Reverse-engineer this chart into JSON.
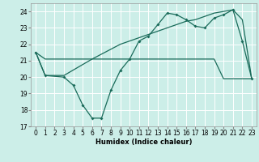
{
  "title": "",
  "xlabel": "Humidex (Indice chaleur)",
  "bg_color": "#cceee8",
  "grid_color": "#ffffff",
  "line_color": "#1a6b5a",
  "xlim": [
    -0.5,
    23.5
  ],
  "ylim": [
    17,
    24.5
  ],
  "yticks": [
    17,
    18,
    19,
    20,
    21,
    22,
    23,
    24
  ],
  "xticks": [
    0,
    1,
    2,
    3,
    4,
    5,
    6,
    7,
    8,
    9,
    10,
    11,
    12,
    13,
    14,
    15,
    16,
    17,
    18,
    19,
    20,
    21,
    22,
    23
  ],
  "line1_x": [
    0,
    1,
    2,
    3,
    4,
    5,
    6,
    7,
    8,
    9,
    10,
    11,
    12,
    13,
    14,
    15,
    16,
    17,
    18,
    19,
    20,
    21,
    22,
    23
  ],
  "line1_y": [
    21.5,
    21.1,
    21.1,
    21.1,
    21.1,
    21.1,
    21.1,
    21.1,
    21.1,
    21.1,
    21.1,
    21.1,
    21.1,
    21.1,
    21.1,
    21.1,
    21.1,
    21.1,
    21.1,
    21.1,
    19.9,
    19.9,
    19.9,
    19.9
  ],
  "line2_x": [
    0,
    1,
    3,
    4,
    5,
    6,
    7,
    8,
    9,
    10,
    11,
    12,
    13,
    14,
    15,
    16,
    17,
    18,
    19,
    20,
    21,
    22,
    23
  ],
  "line2_y": [
    21.5,
    20.1,
    20.0,
    19.5,
    18.3,
    17.5,
    17.5,
    19.2,
    20.4,
    21.1,
    22.2,
    22.5,
    23.2,
    23.9,
    23.8,
    23.5,
    23.1,
    23.0,
    23.6,
    23.8,
    24.1,
    22.2,
    19.9
  ],
  "line3_x": [
    0,
    1,
    3,
    6,
    9,
    10,
    11,
    12,
    13,
    14,
    15,
    16,
    17,
    18,
    19,
    20,
    21,
    22,
    23
  ],
  "line3_y": [
    21.5,
    20.1,
    20.1,
    21.1,
    22.0,
    22.2,
    22.4,
    22.6,
    22.8,
    23.0,
    23.2,
    23.4,
    23.5,
    23.7,
    23.9,
    24.0,
    24.1,
    23.5,
    19.9
  ]
}
